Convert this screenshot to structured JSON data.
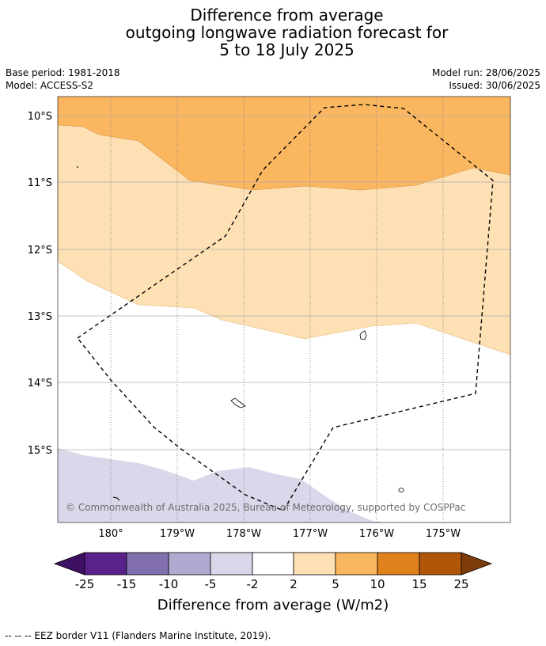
{
  "title_lines": [
    "Difference from average",
    "outgoing longwave radiation forecast for",
    "5 to 18 July 2025"
  ],
  "meta_left": [
    "Base period: 1981-2018",
    "Model: ACCESS-S2"
  ],
  "meta_right": [
    "Model run: 28/06/2025",
    "Issued: 30/06/2025"
  ],
  "lat_labels": [
    "10°S",
    "11°S",
    "12°S",
    "13°S",
    "14°S",
    "15°S"
  ],
  "lon_labels": [
    "180°",
    "179°W",
    "178°W",
    "177°W",
    "176°W",
    "175°W"
  ],
  "copyright": "© Commonwealth of Australia 2025, Bureau of Meteorology, supported by COSPPac",
  "colorbar": {
    "ticks": [
      "-25",
      "-15",
      "-10",
      "-5",
      "-2",
      "2",
      "5",
      "10",
      "15",
      "25"
    ],
    "label": "Difference from average (W/m2)",
    "colors": [
      "#3e1064",
      "#59228a",
      "#8170ad",
      "#b1aad0",
      "#d8d8ea",
      "#ffffff",
      "#fde0b3",
      "#fbb660",
      "#e0821b",
      "#b15608",
      "#7e3c0a"
    ]
  },
  "footer": "--  --  -- EEZ border V11 (Flanders Marine Institute, 2019).",
  "colors": {
    "band_2_5": "#fde0b3",
    "band_5_10": "#fbb660",
    "band_neg5_neg2": "#d8d8ea"
  }
}
